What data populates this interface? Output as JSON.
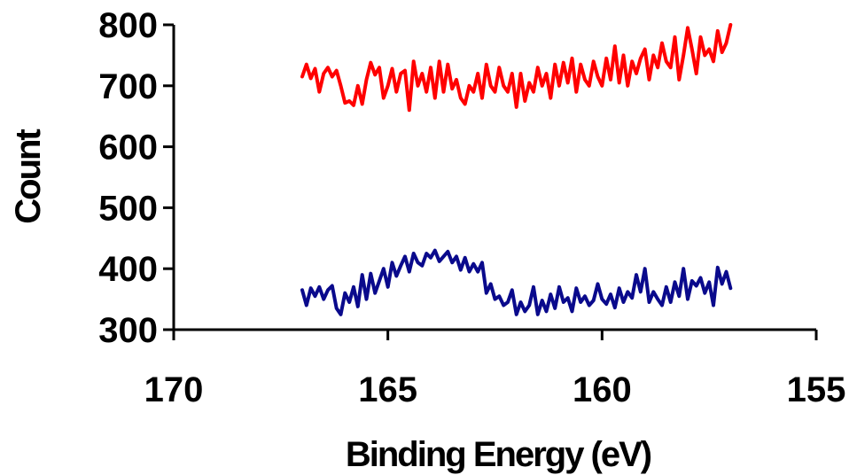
{
  "chart_data": {
    "type": "line",
    "xlabel": "Binding Energy (eV)",
    "ylabel": "Count",
    "xlim": [
      170,
      155
    ],
    "x_reversed": true,
    "ylim": [
      300,
      800
    ],
    "xticks": [
      170,
      165,
      160,
      155
    ],
    "yticks": [
      300,
      400,
      500,
      600,
      700,
      800
    ],
    "grid": false,
    "legend": "none",
    "series": [
      {
        "color": "#ff0000",
        "x": [
          167.0,
          166.9,
          166.8,
          166.7,
          166.6,
          166.5,
          166.4,
          166.3,
          166.2,
          166.1,
          166.0,
          165.9,
          165.8,
          165.7,
          165.6,
          165.5,
          165.4,
          165.3,
          165.2,
          165.1,
          165.0,
          164.9,
          164.8,
          164.7,
          164.6,
          164.5,
          164.4,
          164.3,
          164.2,
          164.1,
          164.0,
          163.9,
          163.8,
          163.7,
          163.6,
          163.5,
          163.4,
          163.3,
          163.2,
          163.1,
          163.0,
          162.9,
          162.8,
          162.7,
          162.6,
          162.5,
          162.4,
          162.3,
          162.2,
          162.1,
          162.0,
          161.9,
          161.8,
          161.7,
          161.6,
          161.5,
          161.4,
          161.3,
          161.2,
          161.1,
          161.0,
          160.9,
          160.8,
          160.7,
          160.6,
          160.5,
          160.4,
          160.3,
          160.2,
          160.1,
          160.0,
          159.9,
          159.8,
          159.7,
          159.6,
          159.5,
          159.4,
          159.3,
          159.2,
          159.1,
          159.0,
          158.9,
          158.8,
          158.7,
          158.6,
          158.5,
          158.4,
          158.3,
          158.2,
          158.1,
          158.0,
          157.9,
          157.8,
          157.7,
          157.6,
          157.5,
          157.4,
          157.3,
          157.2,
          157.1,
          157.0
        ],
        "values": [
          715,
          735,
          712,
          728,
          690,
          720,
          730,
          715,
          725,
          700,
          672,
          675,
          668,
          700,
          670,
          710,
          738,
          718,
          730,
          680,
          700,
          728,
          690,
          720,
          725,
          660,
          740,
          700,
          720,
          690,
          730,
          680,
          740,
          690,
          735,
          695,
          710,
          680,
          670,
          700,
          690,
          720,
          680,
          735,
          700,
          690,
          730,
          700,
          690,
          720,
          665,
          720,
          675,
          705,
          690,
          730,
          700,
          720,
          680,
          735,
          700,
          738,
          705,
          745,
          690,
          735,
          710,
          700,
          740,
          715,
          700,
          745,
          710,
          765,
          705,
          750,
          700,
          740,
          720,
          745,
          760,
          710,
          750,
          730,
          770,
          740,
          730,
          780,
          710,
          750,
          795,
          760,
          720,
          780,
          750,
          760,
          740,
          790,
          755,
          770,
          800
        ]
      },
      {
        "color": "#0a0a8c",
        "x": [
          167.0,
          166.9,
          166.8,
          166.7,
          166.6,
          166.5,
          166.4,
          166.3,
          166.2,
          166.1,
          166.0,
          165.9,
          165.8,
          165.7,
          165.6,
          165.5,
          165.4,
          165.3,
          165.2,
          165.1,
          165.0,
          164.9,
          164.8,
          164.7,
          164.6,
          164.5,
          164.4,
          164.3,
          164.2,
          164.1,
          164.0,
          163.9,
          163.8,
          163.7,
          163.6,
          163.5,
          163.4,
          163.3,
          163.2,
          163.1,
          163.0,
          162.9,
          162.8,
          162.7,
          162.6,
          162.5,
          162.4,
          162.3,
          162.2,
          162.1,
          162.0,
          161.9,
          161.8,
          161.7,
          161.6,
          161.5,
          161.4,
          161.3,
          161.2,
          161.1,
          161.0,
          160.9,
          160.8,
          160.7,
          160.6,
          160.5,
          160.4,
          160.3,
          160.2,
          160.1,
          160.0,
          159.9,
          159.8,
          159.7,
          159.6,
          159.5,
          159.4,
          159.3,
          159.2,
          159.1,
          159.0,
          158.9,
          158.8,
          158.7,
          158.6,
          158.5,
          158.4,
          158.3,
          158.2,
          158.1,
          158.0,
          157.9,
          157.8,
          157.7,
          157.6,
          157.5,
          157.4,
          157.3,
          157.2,
          157.1,
          157.0
        ],
        "values": [
          365,
          340,
          368,
          355,
          370,
          350,
          365,
          372,
          335,
          325,
          360,
          345,
          370,
          338,
          390,
          350,
          392,
          360,
          380,
          400,
          370,
          410,
          388,
          405,
          420,
          395,
          425,
          410,
          405,
          425,
          418,
          430,
          412,
          420,
          428,
          410,
          420,
          398,
          418,
          395,
          408,
          395,
          410,
          360,
          375,
          350,
          355,
          340,
          345,
          365,
          325,
          345,
          330,
          340,
          370,
          325,
          348,
          330,
          358,
          335,
          370,
          345,
          352,
          330,
          368,
          345,
          355,
          340,
          348,
          375,
          350,
          342,
          358,
          336,
          368,
          345,
          362,
          352,
          390,
          362,
          400,
          345,
          362,
          350,
          340,
          370,
          345,
          378,
          355,
          400,
          350,
          380,
          372,
          385,
          360,
          378,
          340,
          402,
          375,
          395,
          368
        ]
      }
    ]
  }
}
